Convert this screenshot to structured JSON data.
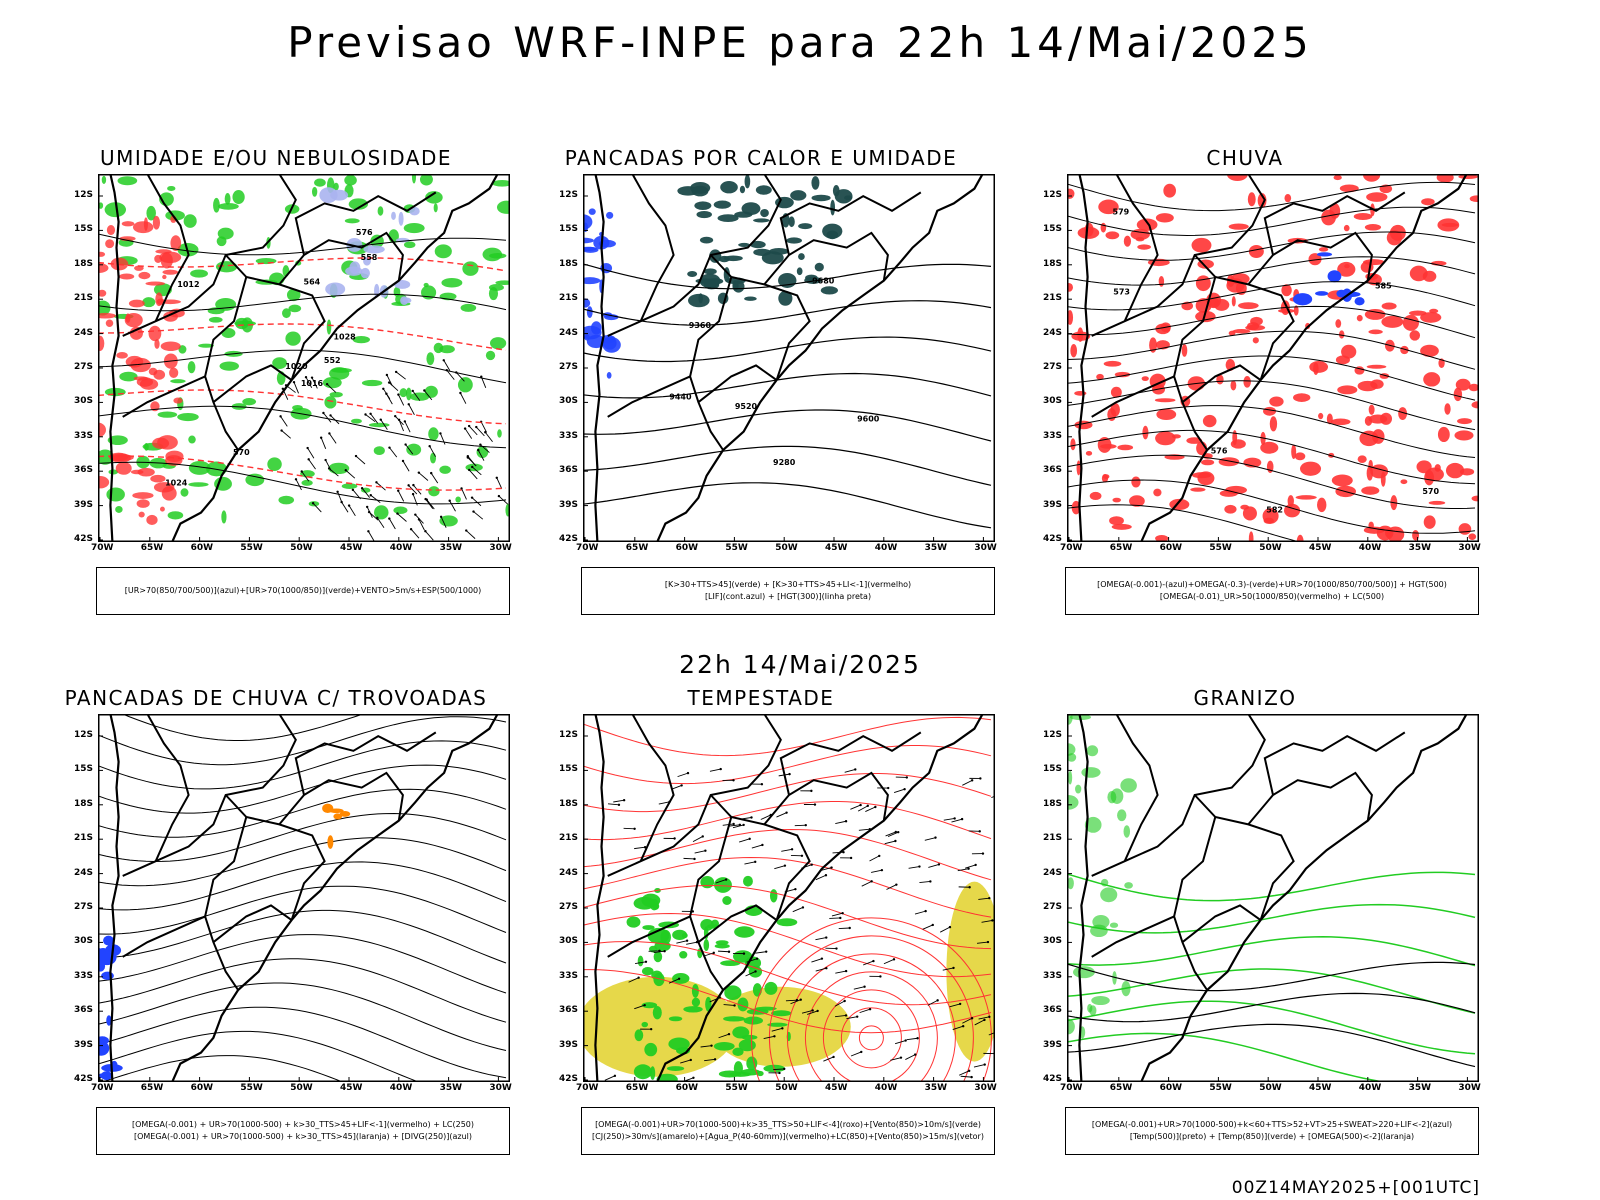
{
  "header": {
    "title": "Previsao WRF-INPE  para 22h 14/Mai/2025"
  },
  "mid_label": "22h 14/Mai/2025",
  "footer": "00Z14MAY2025+[001UTC]",
  "axes": {
    "lat_ticks": [
      "12S",
      "15S",
      "18S",
      "21S",
      "24S",
      "27S",
      "30S",
      "33S",
      "36S",
      "39S",
      "42S"
    ],
    "lon_ticks": [
      "70W",
      "65W",
      "60W",
      "55W",
      "50W",
      "45W",
      "40W",
      "35W",
      "30W"
    ]
  },
  "colors": {
    "green": "#22cc22",
    "red": "#ff3333",
    "blue": "#2244ff",
    "darkteal": "#1d4a4a",
    "yellow": "#e6d84a",
    "orange": "#ff8800",
    "lavender": "#aab4f0"
  },
  "panels": [
    {
      "title": "UMIDADE E/OU NEBULOSIDADE",
      "legend": [
        "[UR>70(850/700/500)](azul)+[UR>70(1000/850)](verde)+VENTO>5m/s+ESP(500/1000)"
      ],
      "labels": [
        "1016",
        "1012",
        "1020",
        "1024",
        "1028",
        "570",
        "576",
        "564",
        "558",
        "552"
      ]
    },
    {
      "title": "PANCADAS POR CALOR E UMIDADE",
      "legend": [
        "[K>30+TTS>45](verde) + [K>30+TTS>45+LI<-1](vermelho)",
        "[LIF](cont.azul) + [HGT(300)](linha preta)"
      ],
      "labels": [
        "9680",
        "9600",
        "9520",
        "9440",
        "9360",
        "9280"
      ]
    },
    {
      "title": "CHUVA",
      "legend": [
        "[OMEGA(-0.001)-(azul)+OMEGA(-0.3)-(verde)+UR>70(1000/850/700/500)] + HGT(500)",
        "[OMEGA(-0.01)_UR>50(1000/850)(vermelho) + LC(500)"
      ],
      "labels": [
        "585",
        "582",
        "579",
        "576",
        "573",
        "570"
      ]
    },
    {
      "title": "PANCADAS DE CHUVA C/ TROVOADAS",
      "legend": [
        "[OMEGA(-0.001) + UR>70(1000-500) + k>30_TTS>45+LIF<-1](vermelho) + LC(250)",
        "[OMEGA(-0.001) + UR>70(1000-500) + k>30_TTS>45](laranja) + [DIVG(250)](azul)"
      ],
      "labels": []
    },
    {
      "title": "TEMPESTADE",
      "legend": [
        "[OMEGA(-0.001)+UR>70(1000-500)+k>35_TTS>50+LIF<-4](roxo)+[Vento(850)>10m/s](verde)",
        "[CJ(250)>30m/s](amarelo)+[Agua_P(40-60mm)](vermelho)+LC(850)+[Vento(850)>15m/s](vetor)"
      ],
      "labels": []
    },
    {
      "title": "GRANIZO",
      "legend": [
        "[OMEGA(-0.001)+UR>70(1000-500)+k<60+TTS>52+VT>25+SWEAT>220+LIF<-2](azul)",
        "[Temp(500)](preto) + [Temp(850)](verde) + [OMEGA(500)<-2](laranja)"
      ],
      "labels": []
    }
  ]
}
